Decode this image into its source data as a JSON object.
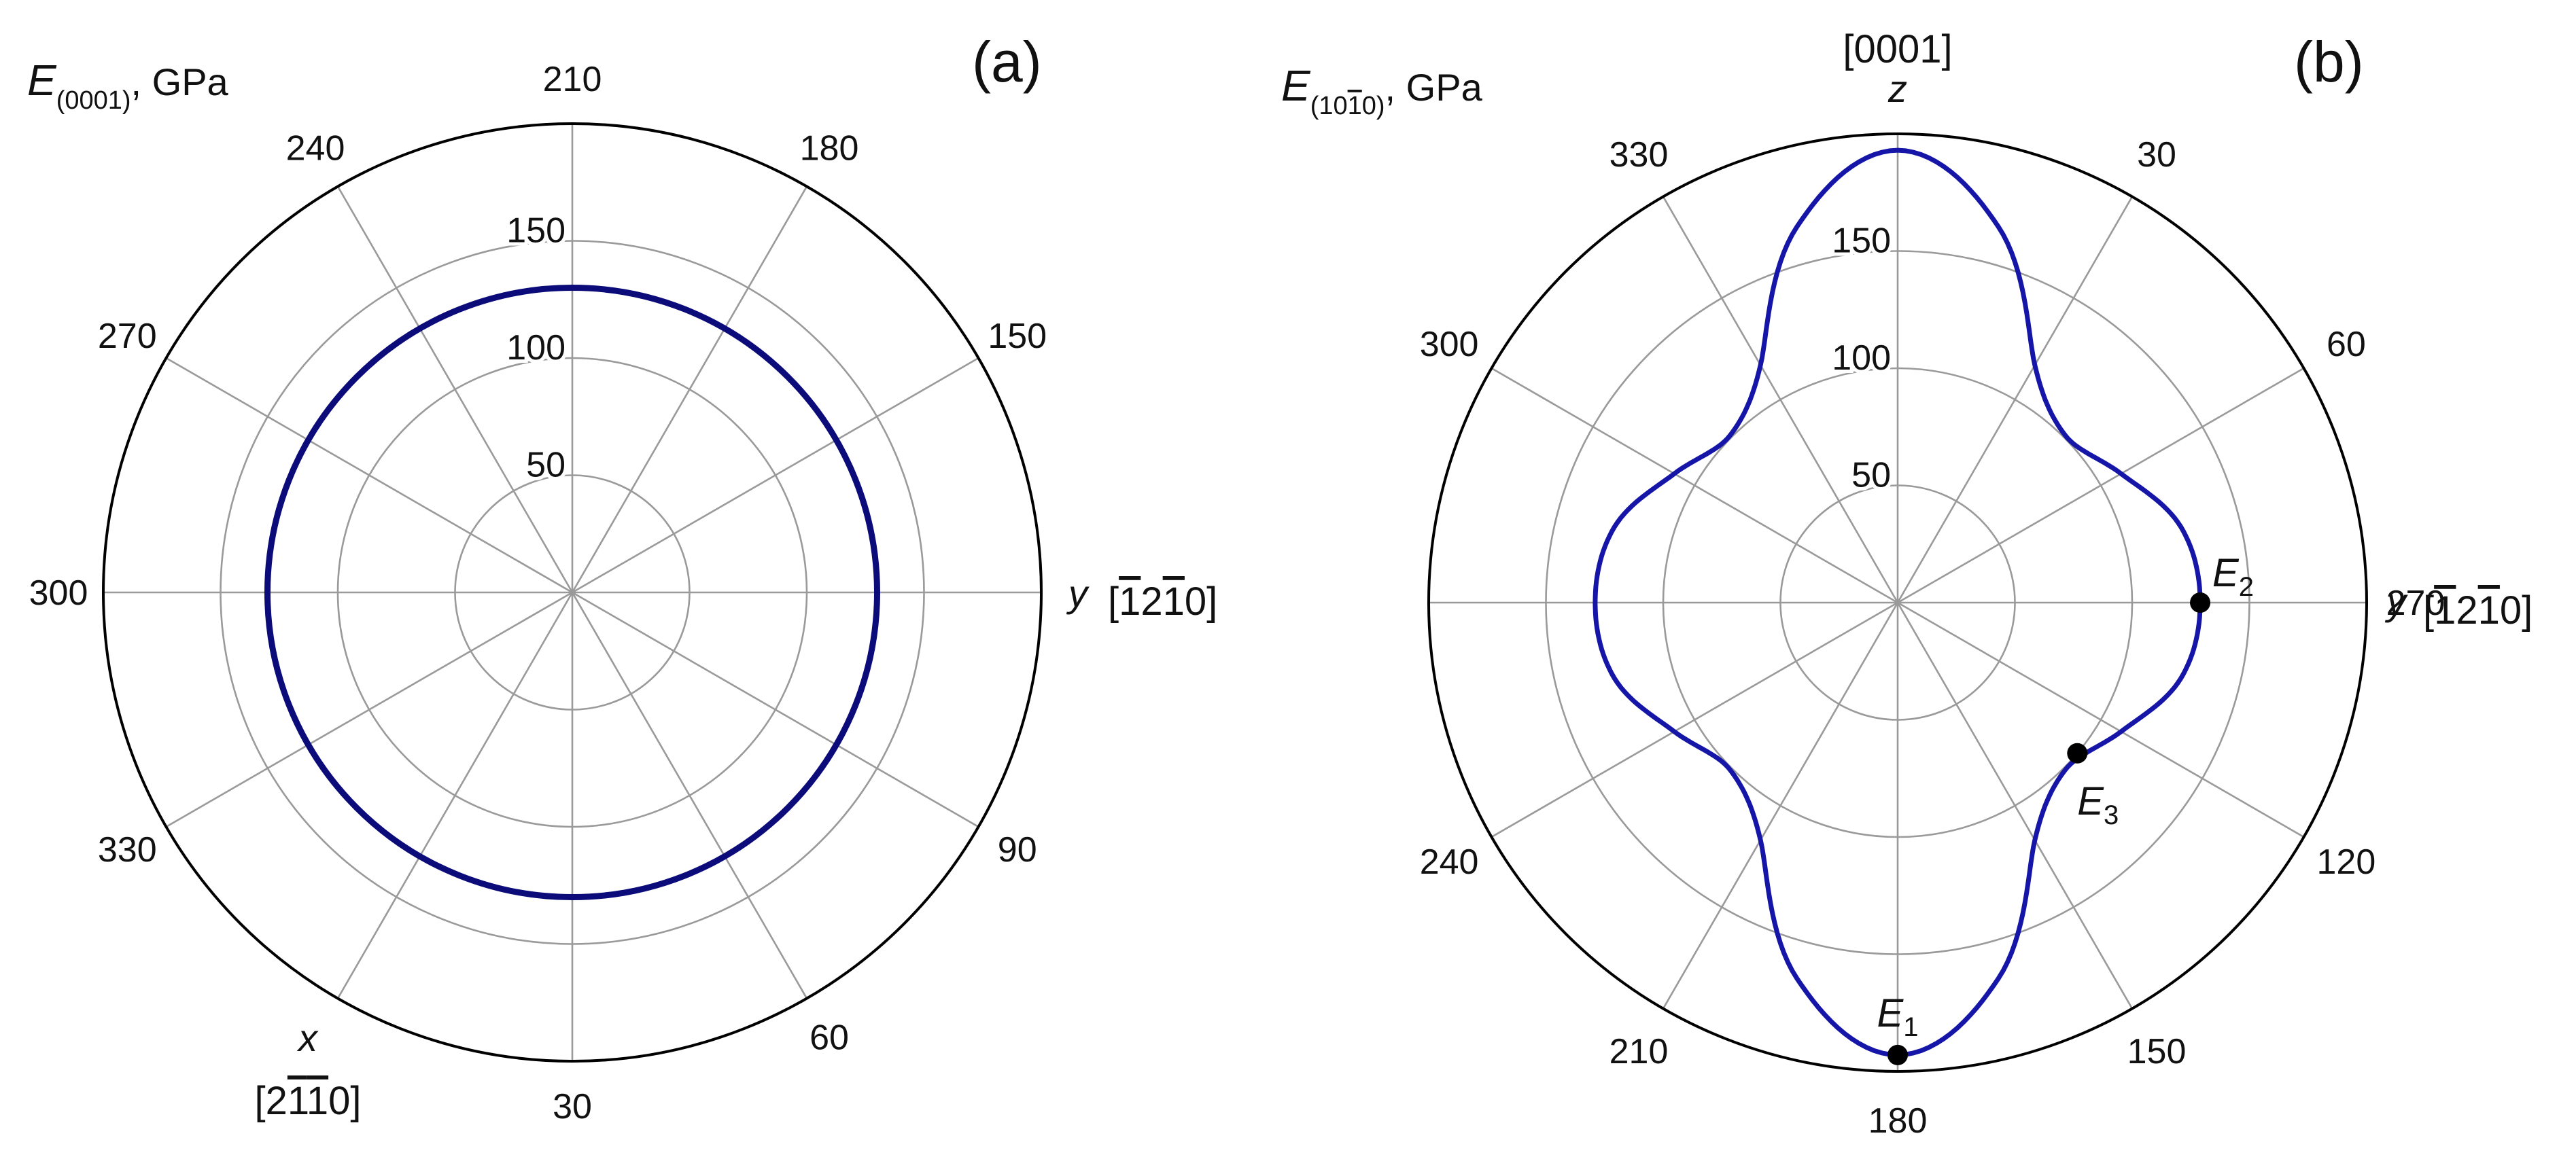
{
  "chart_data": [
    {
      "type": "polar-line",
      "panel_label": "(a)",
      "title": {
        "symbol": "E",
        "subscript": "(0001)",
        "suffix": ", GPa"
      },
      "r_ticks": [
        "50",
        "100",
        "150"
      ],
      "r_grid": [
        50,
        100,
        150,
        200
      ],
      "r_max": 200,
      "angle_labels": [
        {
          "text": "210",
          "dir": 0
        },
        {
          "text": "180",
          "dir": 30
        },
        {
          "text": "150",
          "dir": 60
        },
        {
          "text": "90",
          "dir": 120
        },
        {
          "text": "60",
          "dir": 150
        },
        {
          "text": "30",
          "dir": 180
        },
        {
          "text": "330",
          "dir": 240
        },
        {
          "text": "300",
          "dir": 270
        },
        {
          "text": "270",
          "dir": 300
        },
        {
          "text": "240",
          "dir": 330
        }
      ],
      "axes": {
        "right": {
          "letter": "y",
          "miller": "[̅1 2̅1 0]"
        },
        "bottom_left": {
          "letter": "x",
          "miller": "[2 ̅1̅1 0]"
        }
      },
      "series": [
        {
          "kind": "constant",
          "radius": 130,
          "color": "#0b0b7a"
        }
      ]
    },
    {
      "type": "polar-line",
      "panel_label": "(b)",
      "title": {
        "symbol": "E",
        "subscript": "(101̅0)",
        "suffix": ", GPa"
      },
      "r_ticks": [
        "50",
        "100",
        "150"
      ],
      "r_grid": [
        50,
        100,
        150,
        200
      ],
      "r_max": 200,
      "angle_labels": [
        {
          "text": "30",
          "dir": 30
        },
        {
          "text": "60",
          "dir": 60
        },
        {
          "text": "270",
          "dir": 90
        },
        {
          "text": "120",
          "dir": 120
        },
        {
          "text": "150",
          "dir": 150
        },
        {
          "text": "180",
          "dir": 180
        },
        {
          "text": "210",
          "dir": 210
        },
        {
          "text": "240",
          "dir": 240
        },
        {
          "text": "300",
          "dir": 300
        },
        {
          "text": "330",
          "dir": 330
        }
      ],
      "axes": {
        "top": {
          "letter": "z",
          "miller": "[0001]"
        },
        "right": {
          "letter": "y",
          "miller": "[̅1 2̅1 0]"
        }
      },
      "series": [
        {
          "kind": "curve",
          "color": "#1515a8",
          "direction_deg": [
            0,
            15,
            30,
            45,
            60,
            75,
            90,
            105,
            120,
            135,
            150,
            165,
            180,
            195,
            210,
            225,
            240,
            255,
            270,
            285,
            300,
            315,
            330,
            345
          ],
          "E_GPa": [
            193,
            166,
            117,
            101,
            110,
            125,
            129,
            125,
            110,
            101,
            117,
            166,
            193,
            166,
            117,
            101,
            110,
            125,
            129,
            125,
            110,
            101,
            117,
            166
          ]
        }
      ],
      "points": [
        {
          "label": "E",
          "sub": "1",
          "dir": 180,
          "value": 193
        },
        {
          "label": "E",
          "sub": "2",
          "dir": 90,
          "value": 129
        },
        {
          "label": "E",
          "sub": "3",
          "dir": 130,
          "value": 100
        }
      ]
    }
  ]
}
